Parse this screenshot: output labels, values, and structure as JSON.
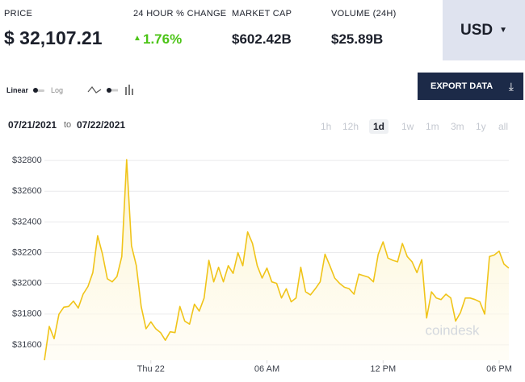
{
  "header": {
    "price_label": "PRICE",
    "price": "$ 32,107.21",
    "change_label": "24 HOUR % CHANGE",
    "change": "1.76%",
    "market_cap_label": "MARKET CAP",
    "market_cap": "$602.42B",
    "volume_label": "VOLUME (24H)",
    "volume": "$25.89B",
    "currency": "USD"
  },
  "controls": {
    "linear": "Linear",
    "log": "Log",
    "export": "EXPORT DATA",
    "date_from": "07/21/2021",
    "date_sep": "to",
    "date_to": "07/22/2021",
    "ranges": [
      "1h",
      "12h",
      "1d",
      "1w",
      "1m",
      "3m",
      "1y",
      "all"
    ]
  },
  "chart_data": {
    "type": "line",
    "color": "#f0c419",
    "grid": true,
    "watermark": "coindesk",
    "x": [
      -5.5,
      -5.25,
      -5,
      -4.75,
      -4.5,
      -4.25,
      -4,
      -3.75,
      -3.5,
      -3.25,
      -3,
      -2.75,
      -2.5,
      -2.25,
      -2,
      -1.75,
      -1.5,
      -1.25,
      -1,
      -0.75,
      -0.5,
      -0.25,
      0,
      0.25,
      0.5,
      0.75,
      1,
      1.25,
      1.5,
      1.75,
      2,
      2.25,
      2.5,
      2.75,
      3,
      3.25,
      3.5,
      3.75,
      4,
      4.25,
      4.5,
      4.75,
      5,
      5.25,
      5.5,
      5.75,
      6,
      6.25,
      6.5,
      6.75,
      7,
      7.25,
      7.5,
      7.75,
      8,
      8.25,
      8.5,
      8.75,
      9,
      9.25,
      9.5,
      9.75,
      10,
      10.25,
      10.5,
      10.75,
      11,
      11.25,
      11.5,
      11.75,
      12,
      12.25,
      12.5,
      12.75,
      13,
      13.25,
      13.5,
      13.75,
      14,
      14.25,
      14.5,
      14.75,
      15,
      15.25,
      15.5,
      15.75,
      16,
      16.25,
      16.5,
      16.75,
      17,
      17.25,
      17.5,
      17.75,
      18,
      18.25,
      18.5
    ],
    "values": [
      31500,
      31720,
      31640,
      31800,
      31845,
      31850,
      31885,
      31840,
      31930,
      31980,
      32070,
      32310,
      32190,
      32030,
      32010,
      32045,
      32175,
      32805,
      32245,
      32115,
      31850,
      31705,
      31750,
      31705,
      31680,
      31630,
      31685,
      31680,
      31850,
      31755,
      31735,
      31865,
      31820,
      31905,
      32150,
      32010,
      32105,
      32010,
      32115,
      32065,
      32200,
      32115,
      32335,
      32260,
      32115,
      32035,
      32100,
      32010,
      32000,
      31905,
      31965,
      31880,
      31905,
      32105,
      31945,
      31925,
      31965,
      32010,
      32190,
      32115,
      32035,
      32000,
      31975,
      31965,
      31930,
      32060,
      32050,
      32040,
      32010,
      32190,
      32270,
      32165,
      32150,
      32140,
      32260,
      32175,
      32140,
      32070,
      32155,
      31775,
      31945,
      31905,
      31895,
      31930,
      31905,
      31755,
      31810,
      31905,
      31905,
      31895,
      31880,
      31800,
      32175,
      32185,
      32210,
      32125,
      32100
    ],
    "xlim": [
      -5.5,
      18.5
    ],
    "xticks": [
      {
        "value": 0,
        "label": "Thu 22"
      },
      {
        "value": 6,
        "label": "06 AM"
      },
      {
        "value": 12,
        "label": "12 PM"
      },
      {
        "value": 18,
        "label": "06 PM"
      }
    ],
    "ylim": [
      31500,
      32900
    ],
    "yticks": [
      {
        "value": 31600,
        "label": "$31600"
      },
      {
        "value": 31800,
        "label": "$31800"
      },
      {
        "value": 32000,
        "label": "$32000"
      },
      {
        "value": 32200,
        "label": "$32200"
      },
      {
        "value": 32400,
        "label": "$32400"
      },
      {
        "value": 32600,
        "label": "$32600"
      },
      {
        "value": 32800,
        "label": "$32800"
      }
    ]
  }
}
